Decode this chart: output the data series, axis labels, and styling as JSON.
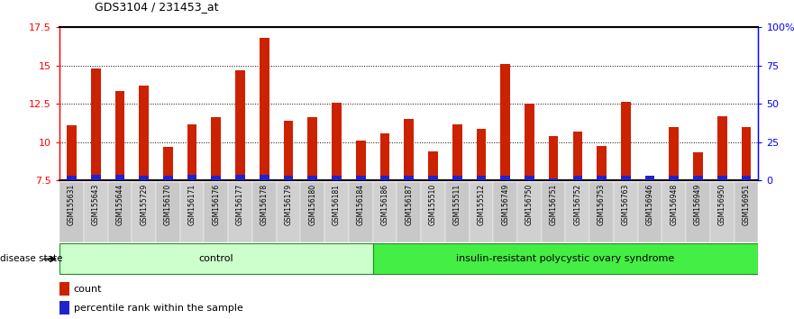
{
  "title": "GDS3104 / 231453_at",
  "samples": [
    "GSM155631",
    "GSM155643",
    "GSM155644",
    "GSM155729",
    "GSM156170",
    "GSM156171",
    "GSM156176",
    "GSM156177",
    "GSM156178",
    "GSM156179",
    "GSM156180",
    "GSM156181",
    "GSM156184",
    "GSM156186",
    "GSM156187",
    "GSM155510",
    "GSM155511",
    "GSM155512",
    "GSM156749",
    "GSM156750",
    "GSM156751",
    "GSM156752",
    "GSM156753",
    "GSM156763",
    "GSM156946",
    "GSM156948",
    "GSM156949",
    "GSM156950",
    "GSM156951"
  ],
  "count_values": [
    11.1,
    14.8,
    13.3,
    13.7,
    9.7,
    11.15,
    11.6,
    14.7,
    16.8,
    11.4,
    11.6,
    12.55,
    10.1,
    10.55,
    11.5,
    9.4,
    11.15,
    10.85,
    15.1,
    12.5,
    10.4,
    10.65,
    9.75,
    12.6,
    7.8,
    11.0,
    9.3,
    11.7,
    11.0
  ],
  "percentile_values": [
    0.3,
    0.35,
    0.35,
    0.3,
    0.3,
    0.35,
    0.3,
    0.35,
    0.35,
    0.3,
    0.3,
    0.3,
    0.3,
    0.3,
    0.3,
    0.3,
    0.3,
    0.3,
    0.3,
    0.3,
    0.1,
    0.3,
    0.3,
    0.3,
    0.3,
    0.3,
    0.3,
    0.3,
    0.3
  ],
  "group_labels": [
    "control",
    "insulin-resistant polycystic ovary syndrome"
  ],
  "group_sizes": [
    13,
    16
  ],
  "bar_color_count": "#cc2200",
  "bar_color_pct": "#2222cc",
  "ymin": 7.5,
  "ymax": 17.5,
  "yticks_left": [
    7.5,
    10.0,
    12.5,
    15.0,
    17.5
  ],
  "ytick_labels_left": [
    "7.5",
    "10",
    "12.5",
    "15",
    "17.5"
  ],
  "right_yticks": [
    0,
    25,
    50,
    75,
    100
  ],
  "right_ytick_labels": [
    "0",
    "25",
    "50",
    "75",
    "100%"
  ],
  "grid_lines": [
    10.0,
    12.5,
    15.0
  ],
  "ctrl_color": "#ccffcc",
  "pcos_color": "#44ee44",
  "label_bg": "#c0c0c0"
}
